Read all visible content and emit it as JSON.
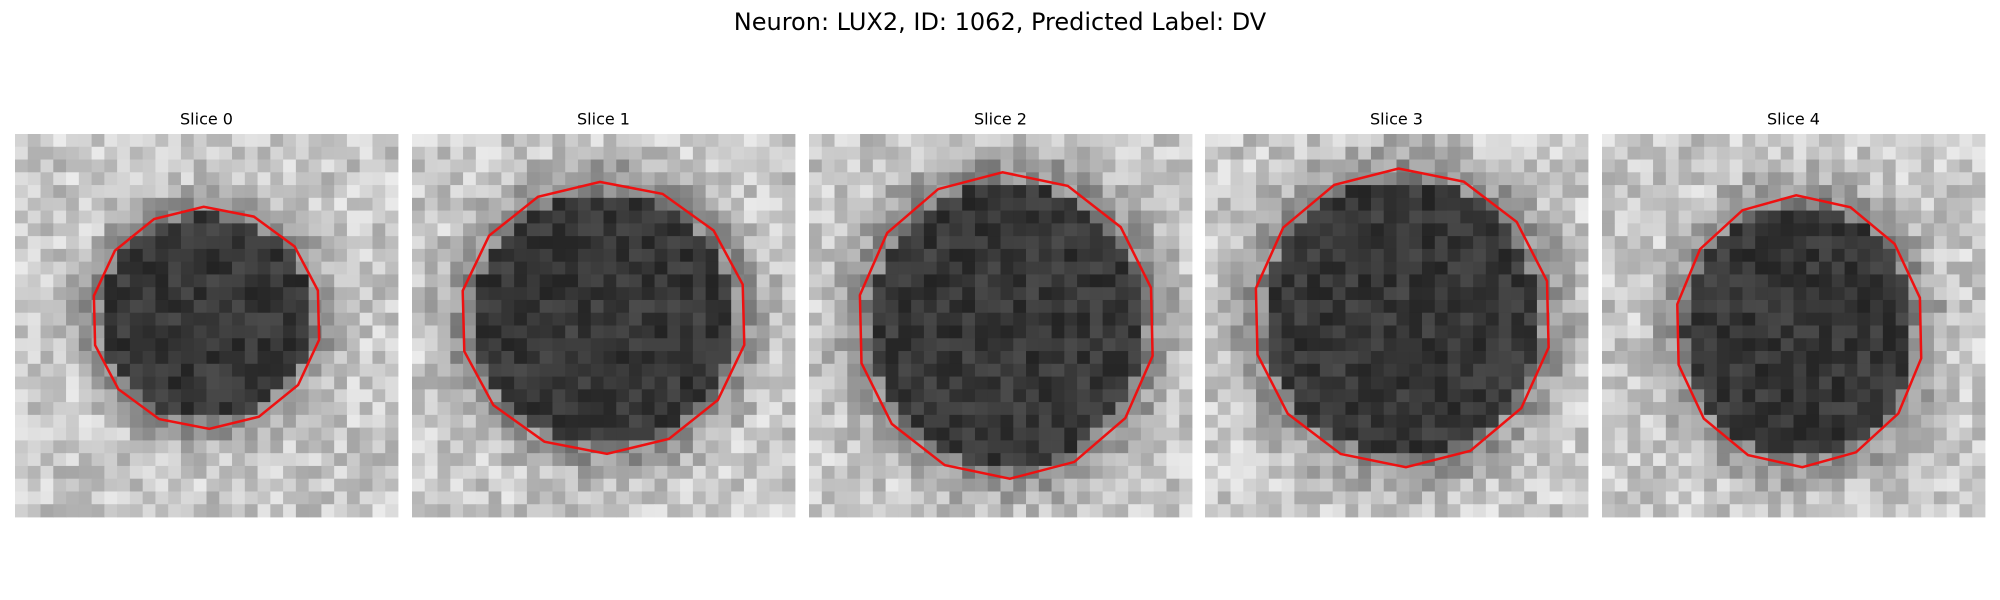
{
  "title": "Neuron: LUX2, ID: 1062, Predicted Label: DV",
  "panels": [
    {
      "title": "Slice 0"
    },
    {
      "title": "Slice 1"
    },
    {
      "title": "Slice 2"
    },
    {
      "title": "Slice 3"
    },
    {
      "title": "Slice 4"
    }
  ]
}
